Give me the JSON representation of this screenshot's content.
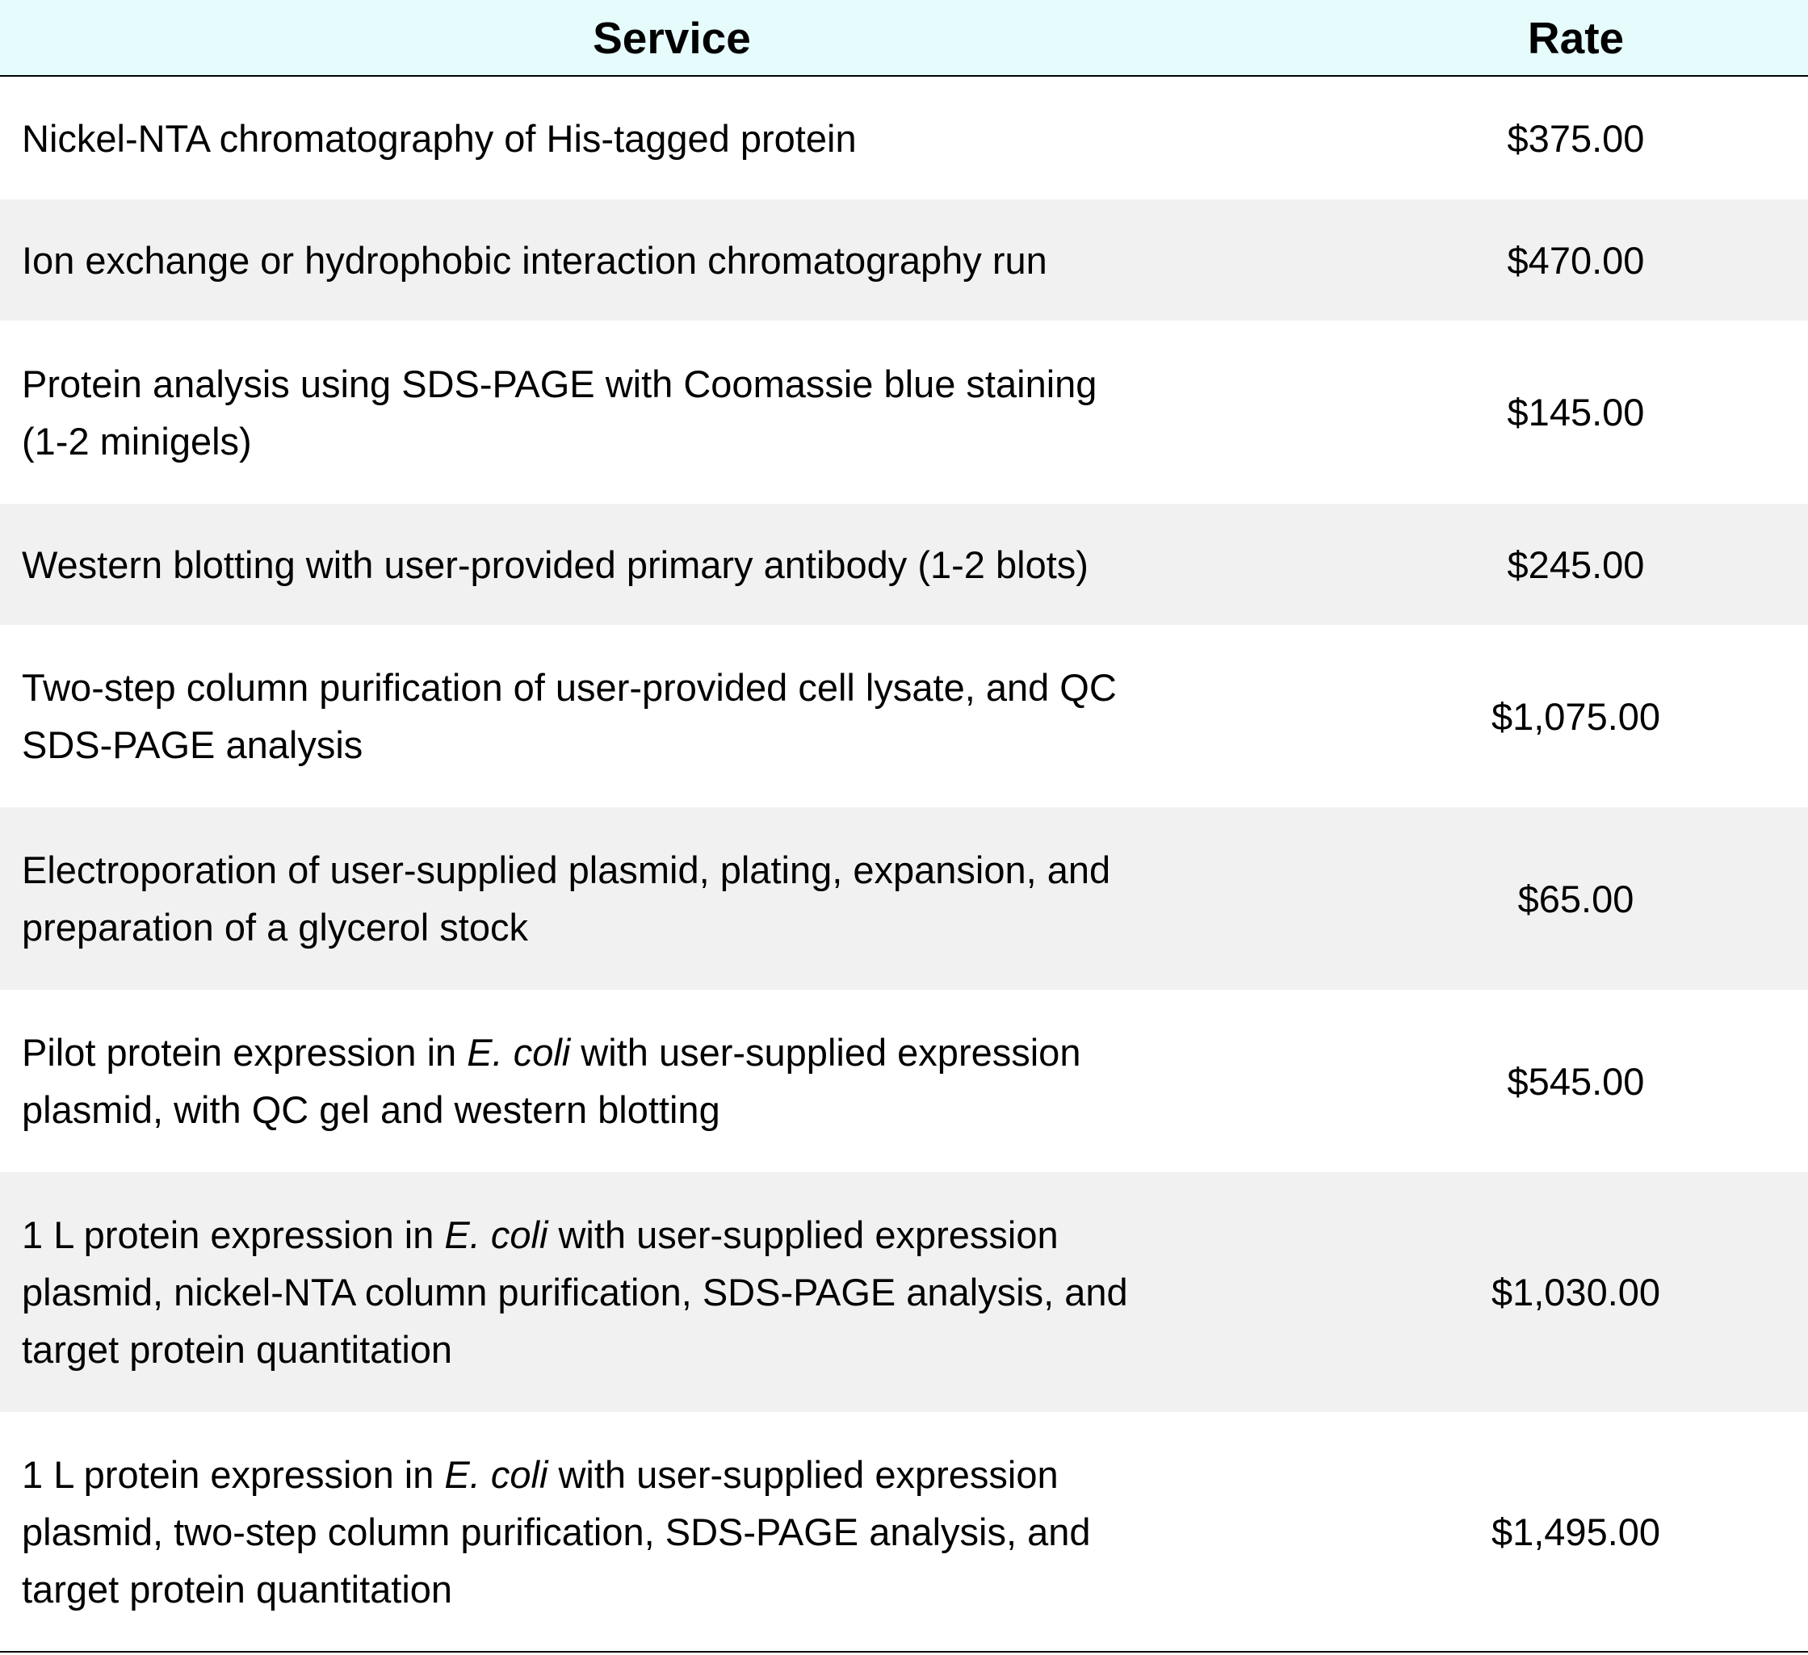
{
  "table": {
    "header": {
      "service": "Service",
      "rate": "Rate"
    },
    "rows": [
      {
        "lines": [
          "Nickel-NTA chromatography of His-tagged protein"
        ],
        "rate": "$375.00"
      },
      {
        "lines": [
          "Ion exchange or hydrophobic interaction chromatography run"
        ],
        "rate": "$470.00"
      },
      {
        "lines": [
          "Protein analysis using SDS-PAGE with Coomassie blue staining",
          "(1-2 minigels)"
        ],
        "rate": "$145.00"
      },
      {
        "lines": [
          "Western blotting with user-provided primary antibody (1-2 blots)"
        ],
        "rate": "$245.00"
      },
      {
        "lines": [
          "Two-step column purification of user-provided cell lysate, and QC",
          "SDS-PAGE analysis"
        ],
        "rate": "$1,075.00"
      },
      {
        "lines": [
          "Electroporation of user-supplied plasmid, plating, expansion, and",
          "preparation of a glycerol stock"
        ],
        "rate": "$65.00"
      },
      {
        "line1_before": "Pilot protein expression in ",
        "line1_italic": "E. coli",
        "line1_after": " with user-supplied expression",
        "line2": "plasmid, with QC gel and western blotting",
        "rate": "$545.00"
      },
      {
        "line1_before": "1 L protein expression in ",
        "line1_italic": "E. coli",
        "line1_after": " with user-supplied expression",
        "line2": "plasmid, nickel-NTA column purification, SDS-PAGE analysis, and",
        "line3": "target protein quantitation",
        "rate": "$1,030.00"
      },
      {
        "line1_before": "1 L protein expression in ",
        "line1_italic": "E. coli",
        "line1_after": " with user-supplied expression",
        "line2": "plasmid, two-step column purification, SDS-PAGE analysis, and",
        "line3": "target protein quantitation",
        "rate": "$1,495.00"
      }
    ]
  }
}
